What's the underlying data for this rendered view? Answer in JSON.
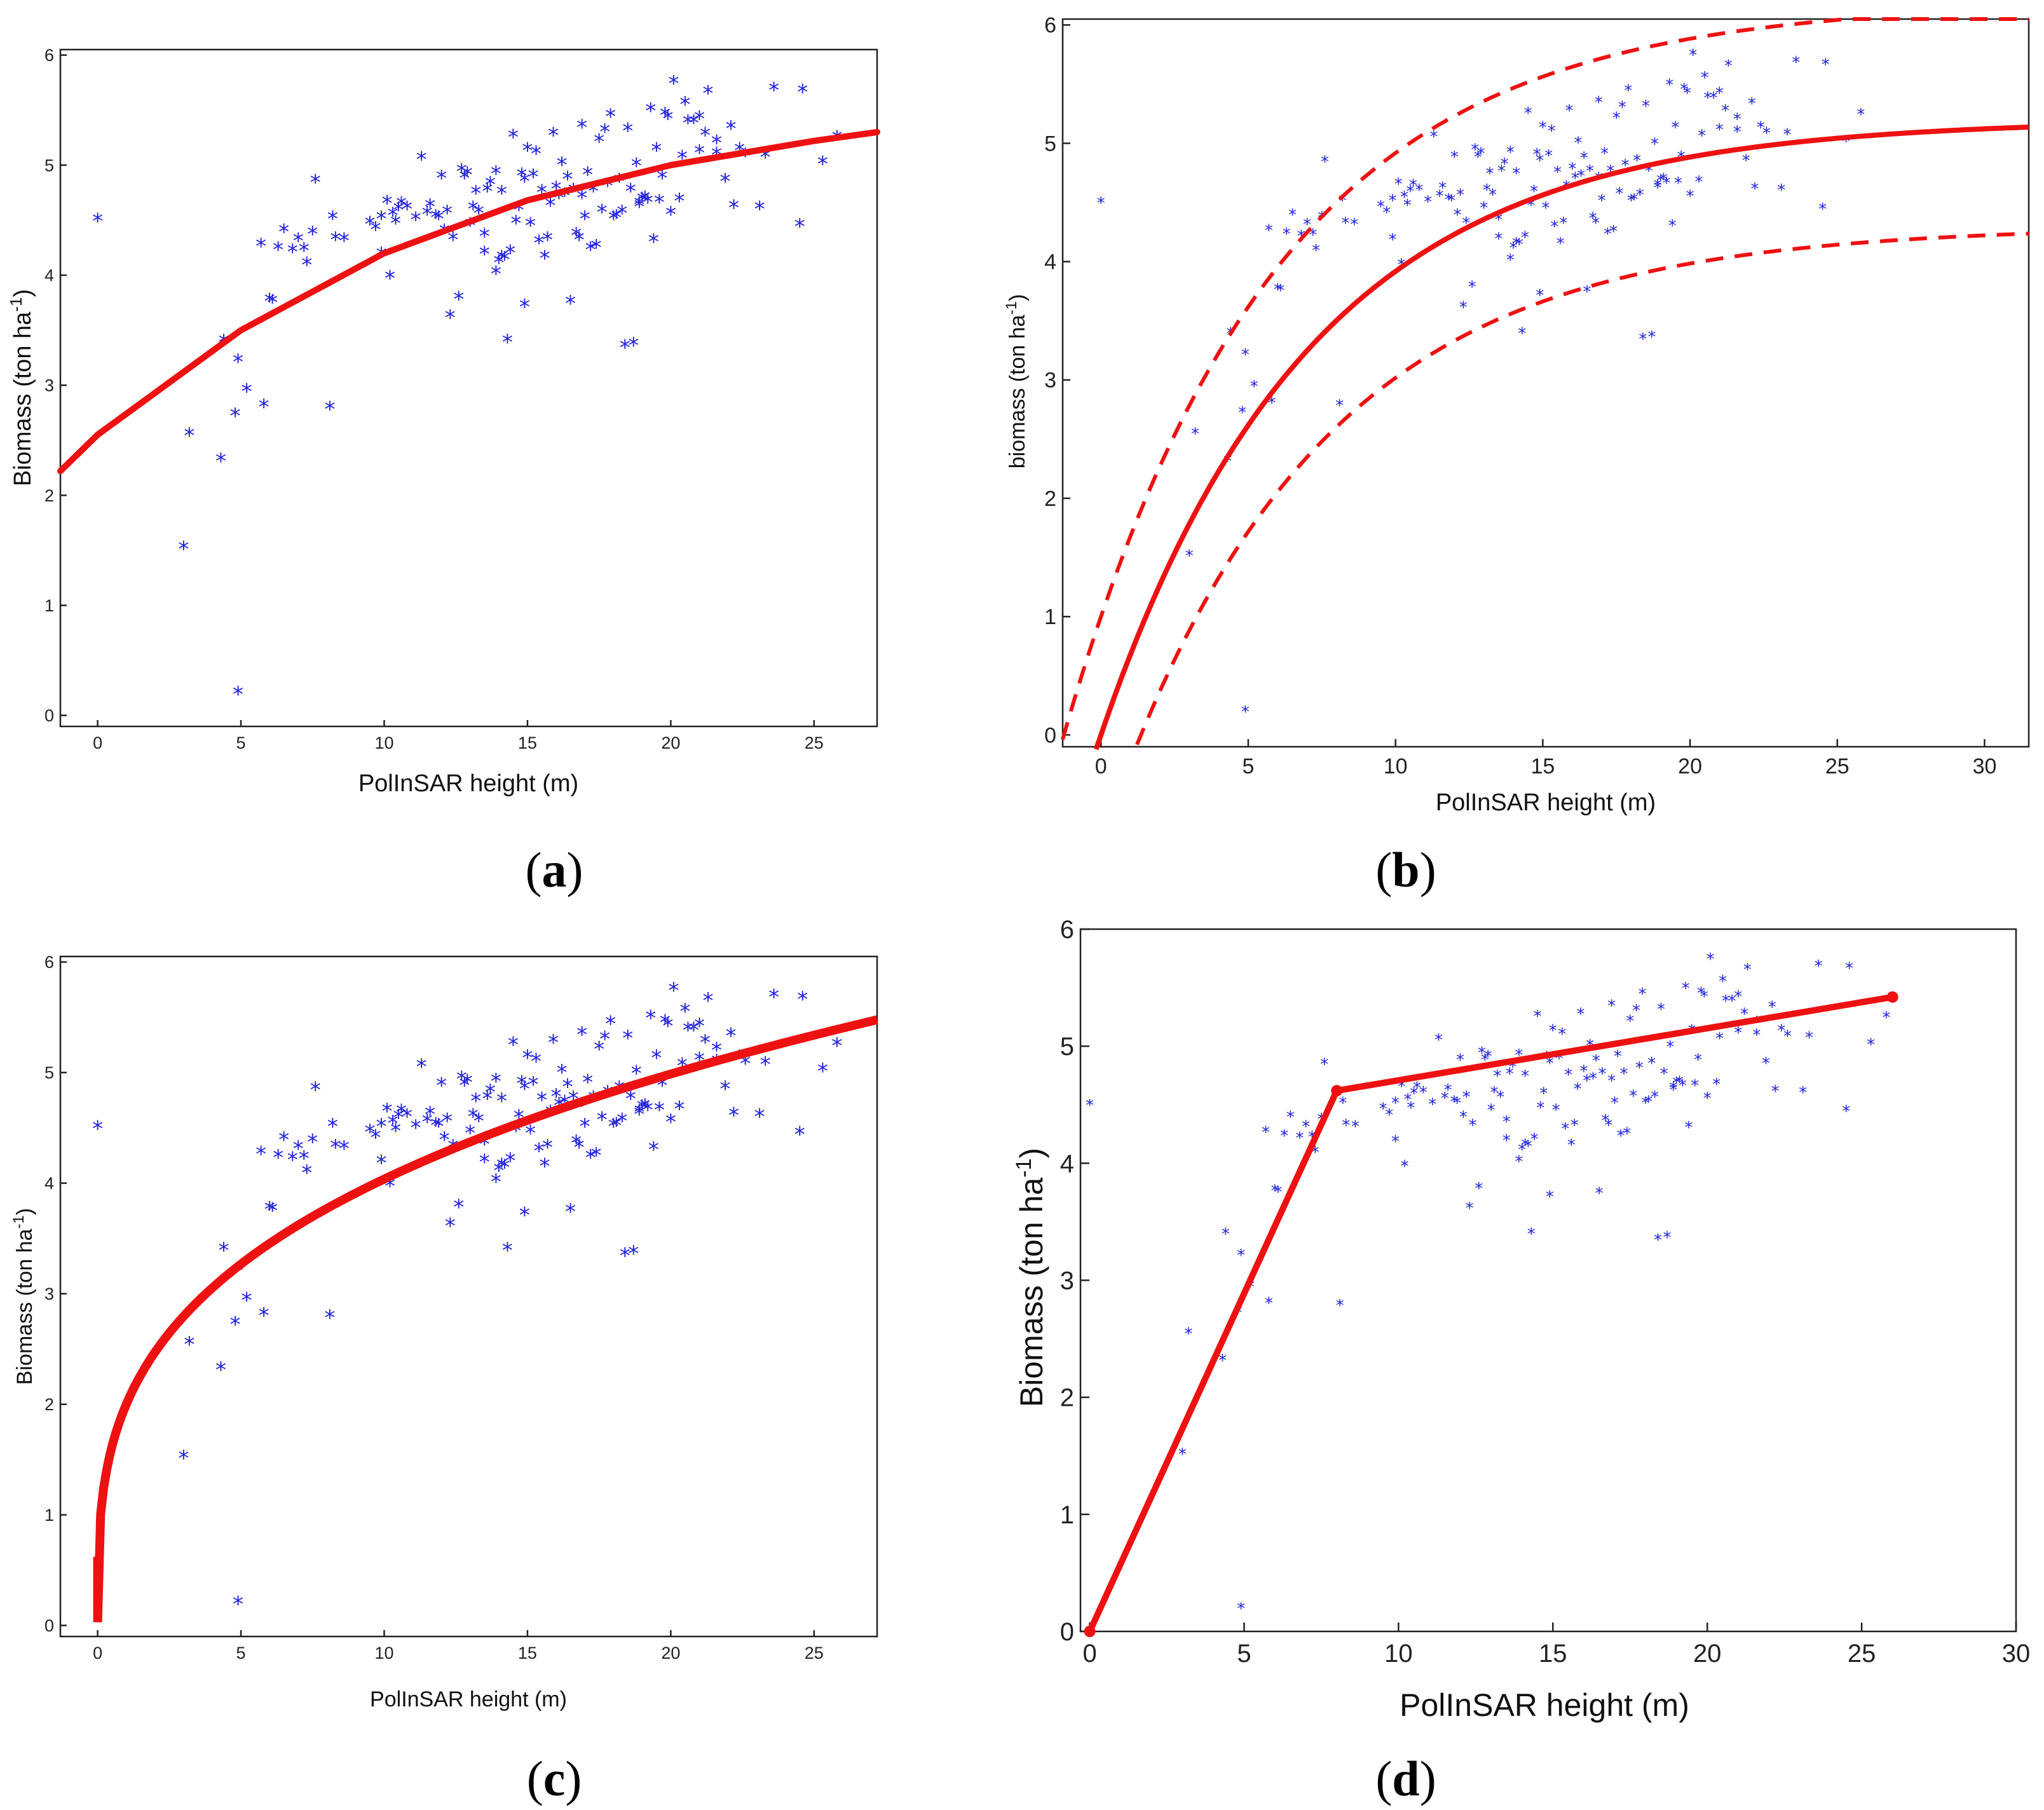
{
  "figure": {
    "panel_label_open": "(",
    "panel_label_close": ")",
    "ylabel_text": "ton ha",
    "ylabel_exp": "-1"
  },
  "chart_data": [
    {
      "id": "a",
      "panel_label": "a",
      "type": "scatter",
      "title": "",
      "xlabel": "PolInSAR height (m)",
      "ylabel_prefix": "Biomass (",
      "ylabel_suffix": ")",
      "xlim": [
        -1.3,
        27.2
      ],
      "ylim": [
        -0.1,
        6.05
      ],
      "xticks": [
        0,
        5,
        10,
        15,
        20,
        25
      ],
      "yticks": [
        0,
        1,
        2,
        3,
        4,
        5,
        6
      ],
      "fit": {
        "kind": "saturating-exponential",
        "points_x": [
          -1.3,
          0,
          5,
          10,
          15,
          20,
          25,
          27.2
        ],
        "points_y": [
          2.22,
          2.55,
          3.5,
          4.2,
          4.68,
          5.0,
          5.22,
          5.3
        ],
        "dashed_bounds": false
      },
      "marker": "*",
      "colors": {
        "points": "#2222dd",
        "fit": "#ee1111"
      }
    },
    {
      "id": "b",
      "panel_label": "b",
      "type": "scatter",
      "title": "",
      "xlabel": "PolInSAR height (m)",
      "ylabel_prefix": "biomass (",
      "ylabel_suffix": ")",
      "xlim": [
        -1.3,
        31.5
      ],
      "ylim": [
        -0.1,
        6.05
      ],
      "xticks": [
        0,
        5,
        10,
        15,
        20,
        25,
        30
      ],
      "yticks": [
        0,
        1,
        2,
        3,
        4,
        5,
        6
      ],
      "fit": {
        "kind": "saturating-exponential",
        "asymptote": 5.2,
        "rate": 0.14,
        "x0": 0,
        "upper_offset": 1.0,
        "lower_offset": -0.9,
        "dashed_bounds": true
      },
      "marker": "*",
      "colors": {
        "points": "#2222dd",
        "fit": "#ee1111"
      }
    },
    {
      "id": "c",
      "panel_label": "c",
      "type": "scatter",
      "title": "",
      "xlabel": "PolInSAR height (m)",
      "ylabel_prefix": "Biomass (",
      "ylabel_suffix": ")",
      "xlim": [
        -1.3,
        27.2
      ],
      "ylim": [
        -0.1,
        6.05
      ],
      "xticks": [
        0,
        5,
        10,
        15,
        20,
        25
      ],
      "yticks": [
        0,
        1,
        2,
        3,
        4,
        5,
        6
      ],
      "fit": {
        "kind": "power",
        "coef": 2.0,
        "exponent": 0.305,
        "start_x": 0.0,
        "start_y": 0.62,
        "dashed_bounds": false
      },
      "marker": "*",
      "colors": {
        "points": "#2222dd",
        "fit": "#ee1111"
      }
    },
    {
      "id": "d",
      "panel_label": "d",
      "type": "scatter",
      "title": "",
      "xlabel": "PolInSAR height (m)",
      "ylabel_prefix": "Biomass (",
      "ylabel_suffix": ")",
      "xlim": [
        -0.3,
        30
      ],
      "ylim": [
        0,
        6
      ],
      "xticks": [
        0,
        5,
        10,
        15,
        20,
        25,
        30
      ],
      "yticks": [
        0,
        1,
        2,
        3,
        4,
        5,
        6
      ],
      "fit": {
        "kind": "piecewise-linear",
        "points_x": [
          0,
          8.0,
          26.0
        ],
        "points_y": [
          0,
          4.62,
          5.42
        ],
        "dashed_bounds": false
      },
      "marker": "*",
      "colors": {
        "points": "#2222dd",
        "fit": "#ee1111"
      }
    }
  ],
  "points": {
    "x": [
      0.0,
      3.0,
      3.2,
      4.3,
      4.4,
      4.8,
      4.9,
      4.9,
      5.2,
      5.7,
      5.8,
      6.0,
      6.1,
      6.3,
      6.5,
      6.8,
      7.0,
      7.2,
      7.3,
      7.5,
      7.6,
      8.1,
      8.2,
      8.3,
      8.6,
      9.5,
      9.7,
      9.9,
      10.1,
      10.2,
      10.3,
      10.4,
      10.6,
      11.3,
      11.5,
      11.8,
      12.0,
      12.2,
      12.4,
      12.6,
      12.9,
      13.0,
      13.2,
      13.5,
      13.7,
      13.9,
      14.1,
      14.2,
      14.3,
      14.5,
      14.7,
      14.9,
      15.1,
      15.3,
      15.5,
      15.7,
      15.9,
      16.1,
      16.3,
      16.5,
      16.7,
      16.9,
      17.1,
      17.3,
      17.5,
      17.7,
      17.9,
      18.1,
      18.3,
      18.5,
      18.7,
      18.9,
      19.1,
      19.3,
      19.5,
      19.7,
      19.9,
      20.1,
      20.3,
      20.5,
      20.8,
      21.0,
      21.3,
      21.6,
      21.9,
      22.2,
      22.6,
      23.1,
      23.6,
      24.5,
      25.3,
      25.8,
      14.1,
      14.9,
      16.0,
      18.4,
      12.3,
      12.8,
      13.5,
      14.6,
      15.2,
      15.8,
      16.6,
      17.2,
      17.8,
      18.6,
      19.2,
      20.0,
      21.2,
      22.1,
      10.8,
      11.9,
      13.1,
      14.4,
      15.6,
      16.4,
      17.4,
      18.0,
      19.4,
      20.6,
      11.1,
      12.7,
      13.6,
      15.0,
      16.8,
      18.2,
      19.0,
      20.4,
      21.6,
      9.9,
      10.5,
      11.6,
      13.3,
      14.8,
      16.2,
      17.6,
      18.8,
      19.8,
      22.4,
      23.3,
      24.6,
      15.4,
      17.0,
      18.9,
      21.0,
      13.9,
      12.1,
      14.0,
      16.9,
      19.6
    ],
    "y": [
      4.5,
      1.52,
      2.55,
      2.32,
      3.4,
      2.73,
      3.22,
      0.2,
      2.95,
      4.27,
      2.81,
      3.77,
      3.76,
      4.24,
      4.4,
      4.22,
      4.32,
      4.23,
      4.1,
      4.38,
      4.85,
      2.79,
      4.52,
      4.33,
      4.32,
      4.47,
      4.42,
      4.52,
      4.66,
      3.98,
      4.55,
      4.48,
      4.65,
      5.06,
      4.56,
      4.53,
      4.89,
      4.57,
      4.33,
      3.79,
      4.92,
      4.46,
      4.75,
      4.2,
      4.83,
      4.02,
      4.75,
      4.15,
      3.4,
      5.26,
      4.6,
      3.72,
      4.46,
      5.11,
      4.76,
      4.33,
      5.28,
      4.71,
      4.73,
      3.75,
      4.37,
      5.35,
      4.92,
      4.77,
      5.22,
      5.31,
      5.45,
      4.53,
      4.57,
      5.32,
      3.37,
      4.63,
      4.7,
      5.5,
      5.14,
      4.89,
      5.43,
      5.75,
      4.68,
      5.56,
      5.39,
      5.43,
      5.66,
      5.21,
      4.86,
      4.62,
      5.09,
      4.61,
      5.69,
      4.45,
      5.02,
      5.25,
      4.16,
      4.86,
      4.79,
      3.35,
      3.62,
      4.89,
      4.36,
      4.48,
      4.9,
      4.64,
      4.77,
      4.24,
      4.82,
      4.77,
      4.67,
      4.56,
      5.28,
      5.34,
      4.61,
      4.52,
      4.61,
      4.21,
      4.16,
      4.88,
      4.26,
      4.52,
      4.31,
      5.39,
      4.51,
      4.95,
      4.77,
      5.14,
      4.33,
      4.86,
      4.69,
      5.07,
      5.1,
      4.19,
      4.6,
      4.63,
      4.57,
      4.91,
      5.01,
      4.58,
      5.0,
      5.46,
      5.14,
      5.08,
      5.67,
      4.3,
      4.52,
      4.65,
      5.12,
      4.93,
      4.4,
      4.12,
      4.71,
      4.67
    ]
  }
}
